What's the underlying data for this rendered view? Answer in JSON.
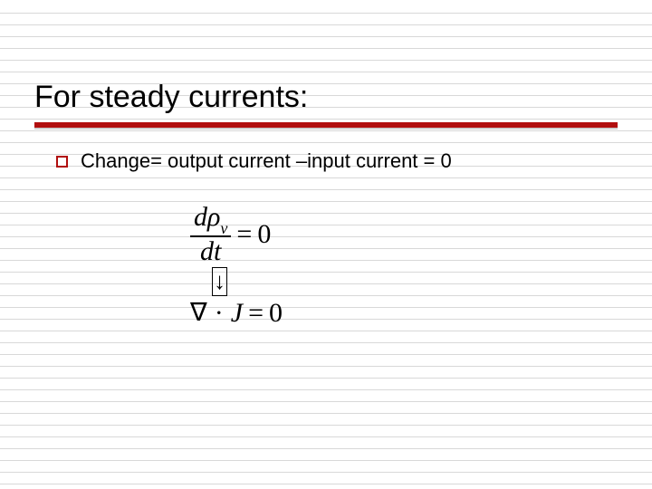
{
  "slide": {
    "title": "For steady currents:",
    "bullet": {
      "text": "Change= output current –input current = 0"
    },
    "equations": {
      "line1": {
        "numerator_d": "d",
        "numerator_sym": "ρ",
        "numerator_sub": "v",
        "denominator": "dt",
        "equals": "=",
        "rhs": "0"
      },
      "arrow_glyph": "↓",
      "line2": {
        "nabla": "∇",
        "dot": "·",
        "var": "J",
        "equals": "=",
        "rhs": "0"
      }
    }
  },
  "style": {
    "title_fontsize": 34,
    "bullet_fontsize": 22,
    "equation_fontsize": 30,
    "accent_color": "#b10e0e",
    "rule_color": "#d8d8d8",
    "background": "#ffffff",
    "text_color": "#000000",
    "underline_gray": "#cfcfcf"
  }
}
